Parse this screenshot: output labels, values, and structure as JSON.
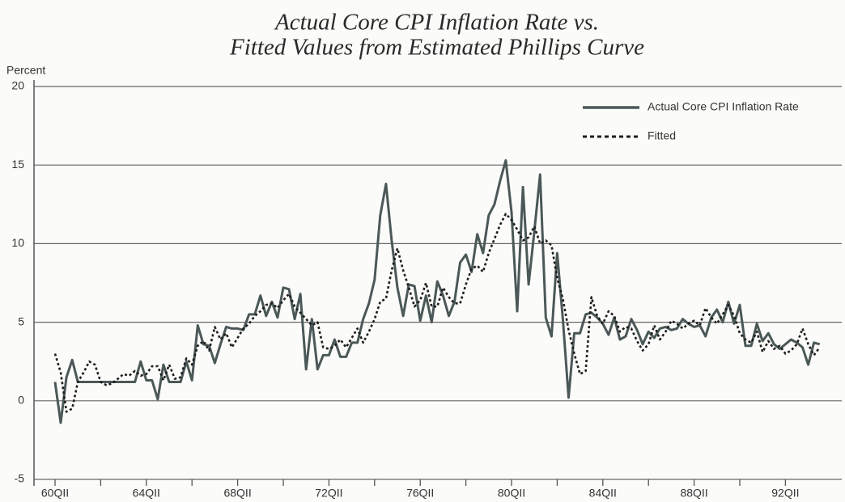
{
  "chart_data": {
    "type": "line",
    "title": [
      "Actual Core CPI Inflation Rate vs.",
      "Fitted Values from Estimated Phillips Curve"
    ],
    "y_label": "Percent",
    "categories": [
      "60QII",
      null,
      null,
      null,
      null,
      null,
      null,
      null,
      null,
      null,
      null,
      null,
      null,
      null,
      null,
      null,
      "64QII",
      null,
      null,
      null,
      null,
      null,
      null,
      null,
      null,
      null,
      null,
      null,
      null,
      null,
      null,
      null,
      "68QII",
      null,
      null,
      null,
      null,
      null,
      null,
      null,
      null,
      null,
      null,
      null,
      null,
      null,
      null,
      null,
      "72QII",
      null,
      null,
      null,
      null,
      null,
      null,
      null,
      null,
      null,
      null,
      null,
      null,
      null,
      null,
      null,
      "76QII",
      null,
      null,
      null,
      null,
      null,
      null,
      null,
      null,
      null,
      null,
      null,
      null,
      null,
      null,
      null,
      "80QII",
      null,
      null,
      null,
      null,
      null,
      null,
      null,
      null,
      null,
      null,
      null,
      null,
      null,
      null,
      null,
      "84QII",
      null,
      null,
      null,
      null,
      null,
      null,
      null,
      null,
      null,
      null,
      null,
      null,
      null,
      null,
      null,
      "88QII",
      null,
      null,
      null,
      null,
      null,
      null,
      null,
      null,
      null,
      null,
      null,
      null,
      null,
      null,
      null,
      "92QII",
      null,
      null,
      null,
      null,
      null,
      null
    ],
    "series": [
      {
        "name": "Actual Core CPI Inflation Rate",
        "color": "#4b5858",
        "style": "solid",
        "values": [
          1.2,
          -1.4,
          1.5,
          2.6,
          1.2,
          1.2,
          1.2,
          1.2,
          1.2,
          1.2,
          1.2,
          1.2,
          1.2,
          1.2,
          1.2,
          2.5,
          1.3,
          1.3,
          0.1,
          2.3,
          1.2,
          1.2,
          1.2,
          2.5,
          1.3,
          4.8,
          3.6,
          3.5,
          2.4,
          3.6,
          4.7,
          4.6,
          4.6,
          4.5,
          5.5,
          5.5,
          6.7,
          5.4,
          6.3,
          5.3,
          7.2,
          7.1,
          5.2,
          6.8,
          2.0,
          5.2,
          2.0,
          2.9,
          2.9,
          3.9,
          2.8,
          2.8,
          3.7,
          3.7,
          5.2,
          6.2,
          7.7,
          11.8,
          13.8,
          10.2,
          7.2,
          5.4,
          7.4,
          7.3,
          5.1,
          6.7,
          5.0,
          7.6,
          6.7,
          5.4,
          6.3,
          8.8,
          9.3,
          8.2,
          10.6,
          9.4,
          11.8,
          12.5,
          14.0,
          15.3,
          12.0,
          5.7,
          13.6,
          7.4,
          10.8,
          14.4,
          5.3,
          4.1,
          9.4,
          5.2,
          0.2,
          4.3,
          4.3,
          5.5,
          5.6,
          5.3,
          4.9,
          4.2,
          5.3,
          3.9,
          4.1,
          5.2,
          4.5,
          3.6,
          4.4,
          4.0,
          4.6,
          4.7,
          4.5,
          4.6,
          5.2,
          4.9,
          4.7,
          4.8,
          4.1,
          5.3,
          5.8,
          5.0,
          6.3,
          4.9,
          6.1,
          3.5,
          3.5,
          4.9,
          3.8,
          4.3,
          3.6,
          3.3,
          3.6,
          3.9,
          3.7,
          3.4,
          2.3,
          3.7,
          3.6
        ]
      },
      {
        "name": "Fitted",
        "color": "#1e1e1e",
        "style": "dotted",
        "values": [
          3.0,
          1.8,
          -0.7,
          -0.5,
          1.2,
          1.8,
          2.5,
          2.3,
          1.2,
          1.0,
          1.1,
          1.4,
          1.7,
          1.6,
          1.9,
          1.6,
          1.7,
          2.2,
          2.2,
          1.3,
          2.3,
          1.4,
          1.5,
          2.7,
          2.3,
          3.5,
          3.8,
          3.2,
          4.7,
          3.9,
          4.3,
          3.4,
          4.0,
          4.6,
          4.9,
          5.4,
          5.7,
          6.1,
          6.2,
          5.9,
          6.4,
          6.8,
          6.0,
          5.6,
          5.2,
          4.8,
          5.0,
          3.4,
          3.3,
          3.5,
          3.9,
          3.4,
          4.0,
          4.6,
          3.7,
          4.4,
          5.2,
          6.3,
          6.5,
          8.3,
          9.7,
          8.3,
          7.2,
          6.0,
          6.4,
          7.5,
          6.0,
          6.0,
          7.2,
          6.6,
          6.2,
          6.2,
          7.4,
          8.4,
          8.6,
          8.2,
          9.4,
          10.3,
          11.2,
          11.9,
          11.5,
          10.9,
          10.2,
          10.4,
          11.1,
          10.0,
          10.2,
          9.9,
          7.8,
          6.5,
          4.5,
          3.0,
          1.7,
          1.9,
          6.6,
          5.4,
          4.9,
          5.7,
          5.4,
          4.4,
          4.7,
          4.6,
          3.8,
          3.2,
          3.6,
          4.8,
          3.9,
          4.4,
          5.1,
          4.9,
          4.6,
          4.9,
          5.1,
          4.8,
          5.9,
          5.3,
          4.9,
          5.5,
          6.1,
          5.4,
          4.3,
          3.9,
          3.7,
          4.4,
          3.1,
          3.8,
          3.3,
          3.5,
          3.0,
          3.2,
          3.6,
          4.6,
          3.6,
          2.9,
          3.4
        ]
      }
    ],
    "ylim": [
      -5,
      20
    ],
    "yticks": [
      -5,
      0,
      5,
      10,
      15,
      20
    ],
    "grid": true,
    "legend": "upper right"
  }
}
